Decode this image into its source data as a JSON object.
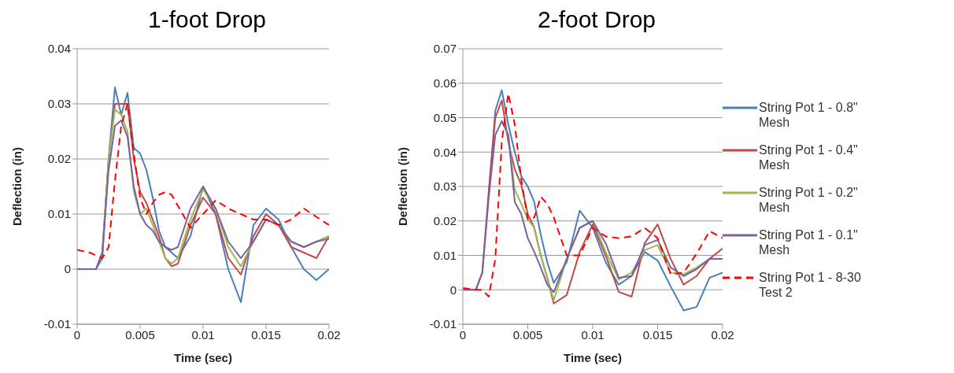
{
  "chart_data": [
    {
      "type": "line",
      "title": "1-foot Drop",
      "xlabel": "Time (sec)",
      "ylabel": "Deflection (in)",
      "xlim": [
        0,
        0.02
      ],
      "xticks": [
        0,
        0.005,
        0.01,
        0.015,
        0.02
      ],
      "ylim": [
        -0.01,
        0.04
      ],
      "yticks": [
        -0.01,
        0,
        0.01,
        0.02,
        0.03,
        0.04
      ],
      "grid": "y",
      "legend": false,
      "x": [
        0,
        0.001,
        0.0015,
        0.002,
        0.0025,
        0.003,
        0.0035,
        0.004,
        0.0045,
        0.005,
        0.0055,
        0.006,
        0.0065,
        0.007,
        0.0075,
        0.008,
        0.009,
        0.01,
        0.011,
        0.012,
        0.013,
        0.014,
        0.015,
        0.016,
        0.017,
        0.018,
        0.019,
        0.02
      ],
      "series": [
        {
          "color": "#4a7ebb",
          "values": [
            0,
            0,
            0,
            0.002,
            0.02,
            0.033,
            0.028,
            0.032,
            0.022,
            0.021,
            0.018,
            0.013,
            0.007,
            0.004,
            0.003,
            0.002,
            0.006,
            0.015,
            0.01,
            0,
            -0.006,
            0.008,
            0.011,
            0.009,
            0.004,
            0,
            -0.002,
            0
          ]
        },
        {
          "color": "#be4b48",
          "values": [
            0,
            0,
            0,
            0.003,
            0.02,
            0.03,
            0.03,
            0.03,
            0.02,
            0.014,
            0.012,
            0.009,
            0.006,
            0.002,
            0.0005,
            0.001,
            0.008,
            0.013,
            0.01,
            0.002,
            -0.001,
            0.006,
            0.01,
            0.008,
            0.004,
            0.003,
            0.002,
            0.006
          ]
        },
        {
          "color": "#98b954",
          "values": [
            null,
            null,
            0,
            0.003,
            0.02,
            0.029,
            0.028,
            0.025,
            0.014,
            0.01,
            0.011,
            0.008,
            0.005,
            0.002,
            0.001,
            0.002,
            0.009,
            0.0145,
            0.011,
            0.004,
            0.0005,
            0.005,
            0.009,
            0.008,
            0.005,
            0.004,
            0.005,
            0.006
          ]
        },
        {
          "color": "#7d60a0",
          "values": [
            0,
            0,
            0,
            0.003,
            0.018,
            0.026,
            0.027,
            0.024,
            0.015,
            0.01,
            0.008,
            0.007,
            0.005,
            0.004,
            0.0035,
            0.004,
            0.011,
            0.015,
            0.011,
            0.005,
            0.002,
            0.005,
            0.009,
            0.008,
            0.005,
            0.004,
            0.005,
            0.0055
          ]
        },
        {
          "color": "#ff0000",
          "line_style": "dashed",
          "values": [
            0.0035,
            0.003,
            0.0025,
            0.002,
            0.004,
            0.016,
            0.026,
            0.03,
            0.021,
            0.013,
            0.01,
            0.012,
            0.0135,
            0.014,
            0.0135,
            0.0115,
            0.0075,
            0.01,
            0.0125,
            0.011,
            0.01,
            0.009,
            0.009,
            0.008,
            0.009,
            0.011,
            0.0095,
            0.008
          ]
        }
      ]
    },
    {
      "type": "line",
      "title": "2-foot Drop",
      "xlabel": "Time (sec)",
      "ylabel": "Deflection (in)",
      "xlim": [
        0,
        0.02
      ],
      "xticks": [
        0,
        0.005,
        0.01,
        0.015,
        0.02
      ],
      "ylim": [
        -0.01,
        0.07
      ],
      "yticks": [
        -0.01,
        0,
        0.01,
        0.02,
        0.03,
        0.04,
        0.05,
        0.06,
        0.07
      ],
      "grid": "y",
      "legend": "right",
      "x": [
        0,
        0.001,
        0.0015,
        0.002,
        0.0025,
        0.003,
        0.0035,
        0.004,
        0.0045,
        0.005,
        0.0055,
        0.006,
        0.0065,
        0.007,
        0.008,
        0.009,
        0.01,
        0.011,
        0.012,
        0.013,
        0.014,
        0.015,
        0.016,
        0.017,
        0.018,
        0.019,
        0.02
      ],
      "series": [
        {
          "name": "String Pot 1 - 0.8\" Mesh",
          "color": "#4a7ebb",
          "values": [
            null,
            null,
            null,
            0.028,
            0.052,
            0.058,
            0.048,
            0.04,
            0.033,
            0.03,
            0.0255,
            0.016,
            0.008,
            0.002,
            0.008,
            0.023,
            0.018,
            0.008,
            0.0015,
            0.004,
            0.011,
            0.0085,
            0.001,
            -0.006,
            -0.005,
            0.0035,
            0.005
          ]
        },
        {
          "name": "String Pot 1 - 0.4\" Mesh",
          "color": "#be4b48",
          "values": [
            0,
            0,
            0.005,
            0.029,
            0.05,
            0.055,
            0.043,
            0.035,
            0.0305,
            0.022,
            0.018,
            0.01,
            0.0035,
            -0.004,
            -0.0015,
            0.011,
            0.019,
            0.01,
            -0.0006,
            -0.002,
            0.0135,
            0.019,
            0.009,
            0.0015,
            0.004,
            0.009,
            0.012
          ]
        },
        {
          "name": "String Pot 1 - 0.2\" Mesh",
          "color": "#98b954",
          "values": [
            null,
            null,
            null,
            null,
            null,
            0.049,
            0.045,
            0.029,
            0.025,
            0.0205,
            0.018,
            0.01,
            0.0035,
            -0.003,
            0.009,
            0.018,
            0.02,
            0.011,
            0.003,
            0.005,
            0.0115,
            0.013,
            0.005,
            0.0045,
            0.0065,
            0.009,
            0.009
          ]
        },
        {
          "name": "String Pot 1 - 0.1\" Mesh",
          "color": "#7d60a0",
          "values": [
            0,
            0,
            0.005,
            0.027,
            0.045,
            0.049,
            0.045,
            0.0255,
            0.022,
            0.015,
            0.011,
            0.0065,
            0.0015,
            -0.0007,
            0.009,
            0.018,
            0.02,
            0.0135,
            0.0035,
            0.004,
            0.013,
            0.0145,
            0.0065,
            0.004,
            0.006,
            0.009,
            0.009
          ]
        },
        {
          "name": "String Pot 1 - 8-30 Test 2",
          "color": "#ff0000",
          "line_style": "dashed",
          "values": [
            0.0005,
            0,
            0,
            -0.002,
            0.009,
            0.043,
            0.057,
            0.048,
            0.032,
            0.0205,
            0.021,
            0.027,
            0.025,
            0.021,
            0.01,
            0.01,
            0.018,
            0.0155,
            0.015,
            0.0155,
            0.018,
            0.015,
            0.0045,
            0.005,
            0.0105,
            0.017,
            0.015
          ]
        }
      ]
    }
  ]
}
